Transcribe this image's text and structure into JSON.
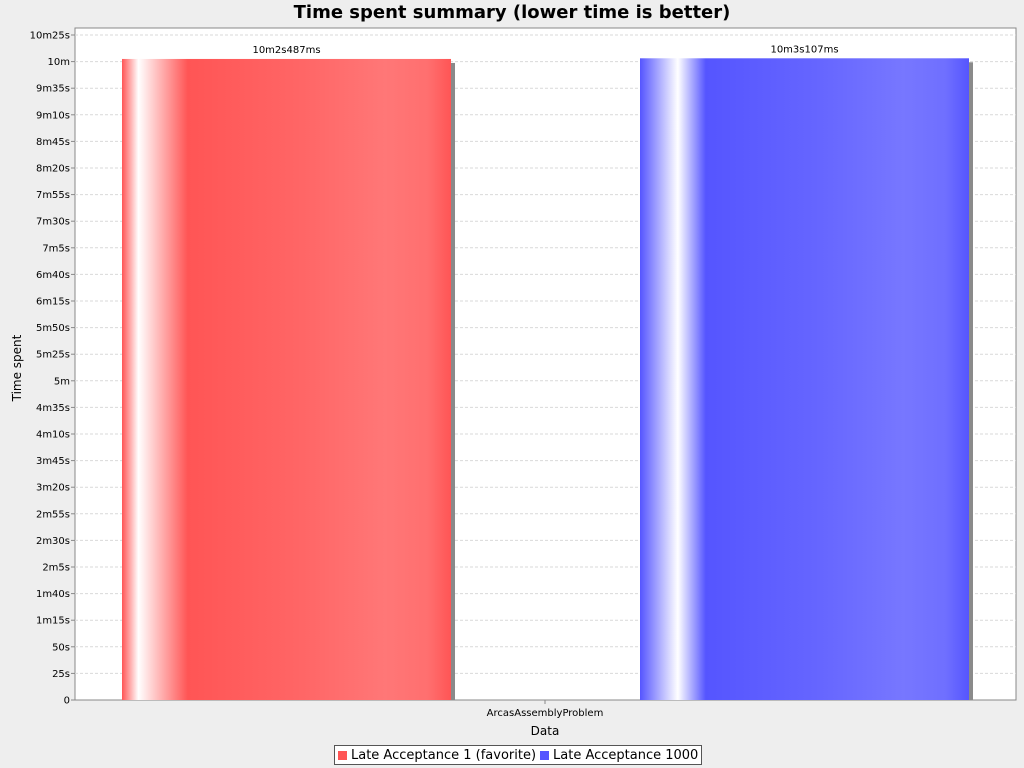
{
  "chart_data": {
    "type": "bar",
    "title": "Time spent summary (lower time is better)",
    "xlabel": "Data",
    "ylabel": "Time spent",
    "categories": [
      "ArcasAssemblyProblem"
    ],
    "ylim_seconds": [
      0,
      625
    ],
    "y_ticks": [
      {
        "value": 0,
        "label": "0"
      },
      {
        "value": 25,
        "label": "25s"
      },
      {
        "value": 50,
        "label": "50s"
      },
      {
        "value": 75,
        "label": "1m15s"
      },
      {
        "value": 100,
        "label": "1m40s"
      },
      {
        "value": 125,
        "label": "2m5s"
      },
      {
        "value": 150,
        "label": "2m30s"
      },
      {
        "value": 175,
        "label": "2m55s"
      },
      {
        "value": 200,
        "label": "3m20s"
      },
      {
        "value": 225,
        "label": "3m45s"
      },
      {
        "value": 250,
        "label": "4m10s"
      },
      {
        "value": 275,
        "label": "4m35s"
      },
      {
        "value": 300,
        "label": "5m"
      },
      {
        "value": 325,
        "label": "5m25s"
      },
      {
        "value": 350,
        "label": "5m50s"
      },
      {
        "value": 375,
        "label": "6m15s"
      },
      {
        "value": 400,
        "label": "6m40s"
      },
      {
        "value": 425,
        "label": "7m5s"
      },
      {
        "value": 450,
        "label": "7m30s"
      },
      {
        "value": 475,
        "label": "7m55s"
      },
      {
        "value": 500,
        "label": "8m20s"
      },
      {
        "value": 525,
        "label": "8m45s"
      },
      {
        "value": 550,
        "label": "9m10s"
      },
      {
        "value": 575,
        "label": "9m35s"
      },
      {
        "value": 600,
        "label": "10m"
      },
      {
        "value": 625,
        "label": "10m25s"
      }
    ],
    "grid": true,
    "legend_position": "bottom",
    "series": [
      {
        "name": "Late Acceptance 1 (favorite)",
        "values": [
          602.487
        ],
        "value_labels": [
          "10m2s487ms"
        ],
        "color": "#ff5555"
      },
      {
        "name": "Late Acceptance 1000",
        "values": [
          603.107
        ],
        "value_labels": [
          "10m3s107ms"
        ],
        "color": "#5555ff"
      }
    ]
  }
}
